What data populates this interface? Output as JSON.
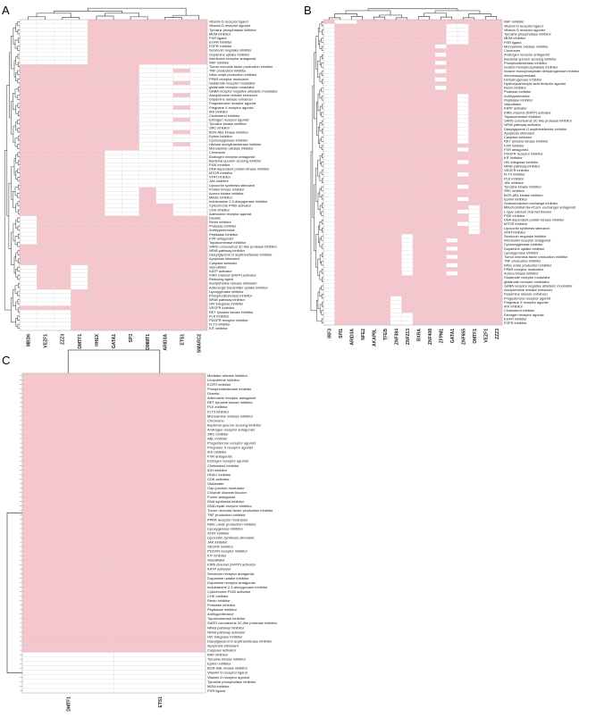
{
  "colors": {
    "on": "#f6c5cc",
    "off": "#ffffff",
    "grid": "#d9d9d9",
    "tree": "#555555",
    "text": "#222222"
  },
  "chart_data": [
    {
      "type": "heatmap",
      "panel_label": "A",
      "columns": [
        "MBD6",
        "VEZF1",
        "ZZZ3",
        "DMTF1",
        "HHEX",
        "GATA1",
        "SP3",
        "DMMT1",
        "ARID3A",
        "ETS1",
        "SMARC2"
      ],
      "rows": [
        "Vitamin D receptor ligand",
        "Vitamin D receptor agonist",
        "Tyrosine phosphatase inhibitor",
        "MDM inhibitor",
        "PXR ligand",
        "EGFR inhibitor",
        "FGFR inhibitor",
        "Serotonin reuptake inhibitor",
        "Dopamine uptake inhibitor",
        "Interleukin receptor antagonist",
        "RAF inhibitor",
        "Tumor necrosis factor production inhibitor",
        "TNF production inhibitor",
        "Nitric oxide production inhibitor",
        "PPAR receptor modulator",
        "Glutamate receptor modulator",
        "glutamate receptor modulator",
        "GABA receptor negative allosteric modulator",
        "Acetylcholine release enhancer",
        "Dopamine release enhancer",
        "Progesterone receptor agonist",
        "Pregnane X receptor agonist",
        "IKK inhibitor",
        "Cholesterol inhibitor",
        "Estrogen receptor agonist",
        "Tyrosine kinase inhibitor",
        "SRC inhibitor",
        "BCR-ABL kinase inhibitor",
        "Ephrin inhibitor",
        "Cyclooxygenase inhibitor",
        "Histone acetyltransferase inhibitor",
        "Monoamine oxidase inhibitor",
        "Chromone",
        "Androgen receptor antagonist",
        "Bacterial quorum sensing inhibitor",
        "PI3K inhibitor",
        "DNA dependent protein kinase inhibitor",
        "MTOR inhibitor",
        "STAT inhibitor",
        "JAK inhibitor",
        "Lipocortin synthesis stimulant",
        "Protein kinase inhibitor",
        "Aurora kinase inhibitor",
        "Mitotic inhibitor",
        "Indoleamine 2,3-dioxygenase inhibitor",
        "Cytochrome P450 activator",
        "CHK inhibitor",
        "Adenosine receptor agonist",
        "Diuretic",
        "Renin inhibitor",
        "Protease inhibitor",
        "Antihypertensive",
        "Peptidase inhibitor",
        "FXR antagonist",
        "Topoisomerase inhibitor",
        "SARS coronavirus 3C-like protease inhibitor",
        "NFkB pathway inhibitor",
        "Diacylglycerol O acyltransferase inhibitor",
        "Apoptosis stimulant",
        "Caspase activator",
        "Vasodilator",
        "KATP activator",
        "KIR6 channel (KATP) activator",
        "Reducing agent",
        "Acetylcholine release stimulant",
        "Adrenergic transmitter uptake inhibitor",
        "Lipoxygenase inhibitor",
        "Phosphodiesterase inhibitor",
        "NFkB pathway inhibitor",
        "HIV integrase inhibitor",
        "VEGFR inhibitor",
        "RET tyrosine kinase inhibitor",
        "PLK inhibitor",
        "PDGFR receptor inhibitor",
        "FLT3 inhibitor",
        "KIT inhibitor"
      ]
    },
    {
      "type": "heatmap",
      "panel_label": "B",
      "columns": [
        "IRF3",
        "SPI1",
        "ARID3A",
        "NFE2",
        "AKAP8L",
        "TFEB",
        "ZNF384",
        "ZNF213",
        "RXRA",
        "ZNF408",
        "ZFPM1",
        "GATA1",
        "ZNF655",
        "DMTF1",
        "VEZF1",
        "ZZZ3"
      ],
      "rows": [
        "RAF inhibitor",
        "Vitamin D receptor ligand",
        "Vitamin D receptor agonist",
        "Tyrosine phosphatase inhibitor",
        "MDM inhibitor",
        "PXR ligand",
        "Monoamine oxidase inhibitor",
        "Chromone",
        "Androgen receptor antagonist",
        "Bacterial quorum sensing inhibitor",
        "Phosphodiesterase inhibitor",
        "Inositol monophosphatase inhibitor",
        "Inosine monophosphate dehydrogenase inhibitor",
        "Immunosuppressant",
        "Dehydrogenase inhibitor",
        "Hydroxycarboxylic acid receptor agonist",
        "Renin inhibitor",
        "Protease inhibitor",
        "Antihypertensive",
        "Peptidase inhibitor",
        "Vasodilator",
        "KATP activator",
        "KIR6 channel (KATP) activator",
        "Topoisomerase inhibitor",
        "SARS coronavirus 3C-like protease inhibitor",
        "NFkB pathway activator",
        "Diacylglycerol O acyltransferase inhibitor",
        "Apoptosis stimulant",
        "Caspase activator",
        "RET tyrosine kinase inhibitor",
        "FXR inhibitor",
        "FXR antagonist",
        "PDGFR receptor inhibitor",
        "KIT inhibitor",
        "HIV integrase inhibitor",
        "NFkB pathway inhibitor",
        "VEGFR inhibitor",
        "FLT3 inhibitor",
        "PLK inhibitor",
        "JAK inhibitor",
        "Tyrosine kinase inhibitor",
        "SRC inhibitor",
        "BCR-ABL kinase inhibitor",
        "Ephrin inhibitor",
        "Sodium/calcium exchange inhibitor",
        "Mitochondrial Na+/Ca2+ exchanger antagonist",
        "L-type calcium channel blocker",
        "PI3K inhibitor",
        "DNA dependent protein kinase inhibitor",
        "MTOR inhibitor",
        "Lipocortin synthesis stimulant",
        "STAT inhibitor",
        "Serotonin reuptake inhibitor",
        "Interleukin receptor antagonist",
        "Cyclooxygenase inhibitor",
        "Dopamine uptake inhibitor",
        "Lipoxygenase inhibitor",
        "Tumor necrosis factor production inhibitor",
        "TNF production inhibitor",
        "Nitric oxide production inhibitor",
        "PPAR receptor modulator",
        "Aurora kinase inhibitor",
        "Glutamate receptor modulator",
        "glutamate receptor modulator",
        "GABA receptor negative allosteric modulator",
        "Acetylcholine release enhancer",
        "Dopamine release enhancer",
        "Progesterone receptor agonist",
        "Pregnane X receptor agonist",
        "IKK inhibitor",
        "Cholesterol inhibitor",
        "Estrogen receptor agonist",
        "EGFR inhibitor",
        "FGFR inhibitor"
      ]
    },
    {
      "type": "heatmap",
      "panel_label": "C",
      "columns": [
        "DMTF1",
        "ETS1"
      ],
      "rows": [
        "Mediator release inhibitor",
        "Leukotriene inhibitor",
        "EGFR inhibitor",
        "Phosphodiesterase inhibitor",
        "Diuretic",
        "Adenosine receptor antagonist",
        "RET tyrosine kinase inhibitor",
        "PLK inhibitor",
        "FLT3 inhibitor",
        "Monoamine oxidase inhibitor",
        "Chromone",
        "Bacterial quorum sensing inhibitor",
        "Androgen receptor antagonist",
        "SRC inhibitor",
        "ABL inhibitor",
        "Progesterone receptor agonist",
        "Pregnane X receptor agonist",
        "IKK inhibitor",
        "FXR antagonist",
        "Estrogen receptor agonist",
        "Cholesterol inhibitor",
        "IDH inhibitor",
        "HDAC inhibitor",
        "CDK activator",
        "Glutamate",
        "Gap junction modulator",
        "Chloride channel blocker",
        "Purine antagonist",
        "DNA synthesis inhibitor",
        "DNA repair enzyme inhibitor",
        "Tumor necrosis factor production inhibitor",
        "TNF production inhibitor",
        "PPAR receptor modulator",
        "Nitric oxide production inhibitor",
        "Lipoxygenase inhibitor",
        "STAT inhibitor",
        "Lipocortin synthesis stimulant",
        "JAK inhibitor",
        "VEGFR inhibitor",
        "PDGFR receptor inhibitor",
        "KIT inhibitor",
        "Vasodilator",
        "KIR6 channel (KATP) activator",
        "KATP activator",
        "Serotonin receptor antagonist",
        "Dopamine uptake inhibitor",
        "Dopamine receptor antagonist",
        "Indoleamine 2,3-dioxygenase inhibitor",
        "Cytochrome P450 activator",
        "CHK inhibitor",
        "Renin inhibitor",
        "Protease inhibitor",
        "Peptidase inhibitor",
        "Antihypertensive",
        "Topoisomerase inhibitor",
        "SARS coronavirus 3C-like protease inhibitor",
        "NFkB pathway inhibitor",
        "NFkB pathway activator",
        "HIV integrase inhibitor",
        "Diacylglycerol O acyltransferase inhibitor",
        "Apoptosis stimulant",
        "Caspase activator",
        "RAF inhibitor",
        "Tyrosine kinase inhibitor",
        "Ephrin inhibitor",
        "BCR-ABL kinase inhibitor",
        "Vitamin D receptor ligand",
        "Vitamin D receptor agonist",
        "Tyrosine phosphatase inhibitor",
        "MDM inhibitor",
        "PXR ligand"
      ],
      "off_rows_from": 62
    }
  ]
}
